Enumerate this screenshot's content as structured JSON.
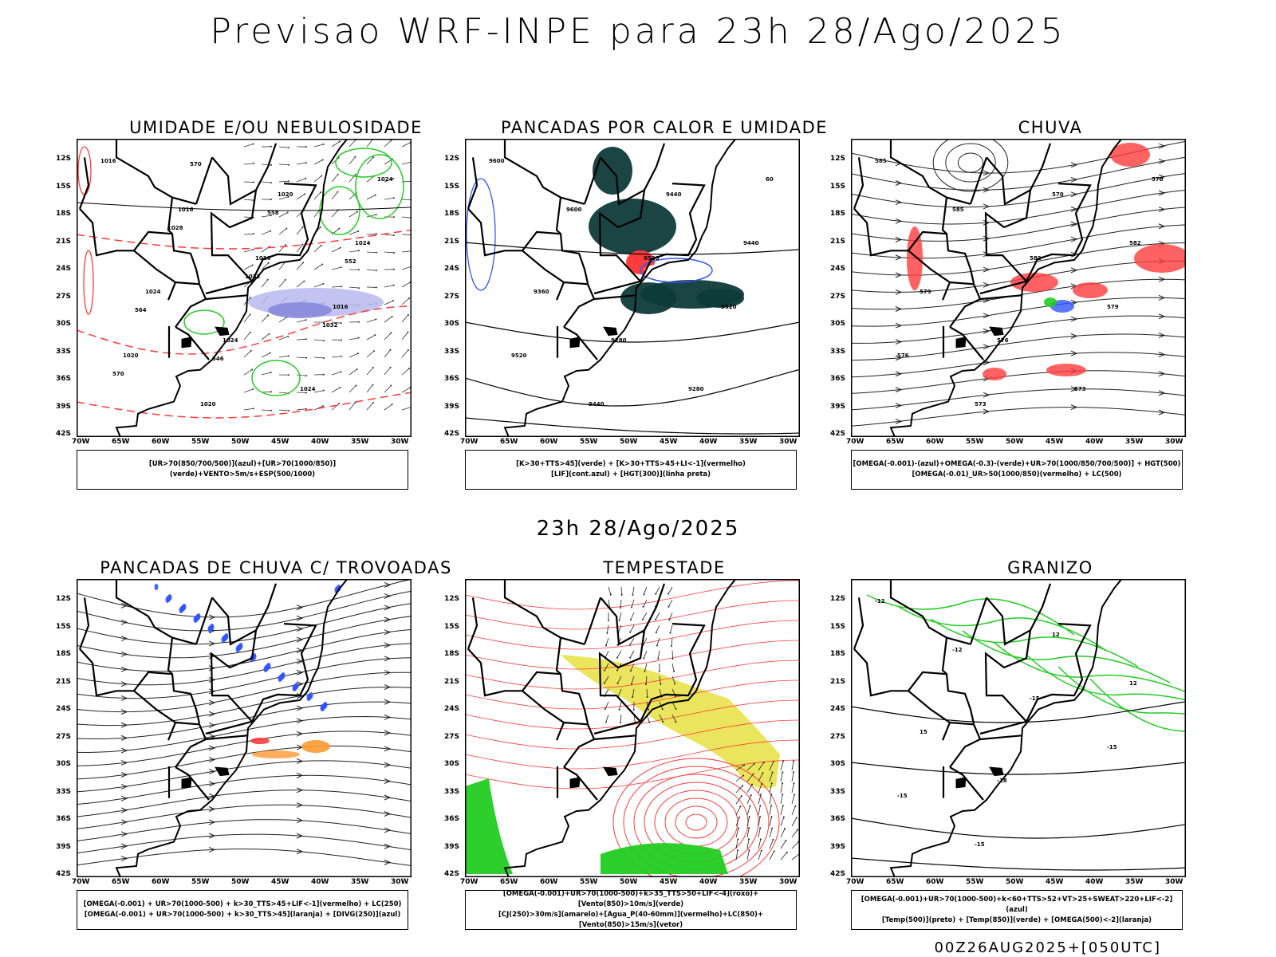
{
  "title": "Previsao WRF-INPE  para 23h 28/Ago/2025",
  "mid_title": "23h 28/Ago/2025",
  "footer": "00Z26AUG2025+[050UTC]",
  "axes": {
    "lat": [
      "12S",
      "15S",
      "18S",
      "21S",
      "24S",
      "27S",
      "30S",
      "33S",
      "36S",
      "39S",
      "42S"
    ],
    "lon": [
      "70W",
      "65W",
      "60W",
      "55W",
      "50W",
      "45W",
      "40W",
      "35W",
      "30W"
    ]
  },
  "colors": {
    "red": "#ff3b3b",
    "green": "#22cc22",
    "blue": "#3355ff",
    "lavender": "#b8b8f0",
    "darkteal": "#0f3a3a",
    "yellow": "#e6e040",
    "orange": "#ff9933",
    "black": "#000000"
  },
  "panels": [
    {
      "id": "umidade",
      "title": "UMIDADE E/OU NEBULOSIDADE",
      "caption_lines": [
        "[UR>70(850/700/500)](azul)+[UR>70(1000/850)](verde)+VENTO>5m/s+ESP(500/1000)"
      ],
      "labels": [
        "1016",
        "1016",
        "1016",
        "1016",
        "1020",
        "1020",
        "1020",
        "1024",
        "1024",
        "1024",
        "1024",
        "1024",
        "1028",
        "1032",
        "1032",
        "570",
        "570",
        "558",
        "552",
        "564",
        "546"
      ]
    },
    {
      "id": "pancadas-calor",
      "title": "PANCADAS POR CALOR E UMIDADE",
      "caption_lines": [
        "[K>30+TTS>45](verde) + [K>30+TTS>45+LI<-1](vermelho)",
        "[LIF](cont.azul) + [HGT(300)](linha preta)"
      ],
      "labels": [
        "9600",
        "9600",
        "9520",
        "9520",
        "9520",
        "9440",
        "9440",
        "9440",
        "9360",
        "9280",
        "9280",
        "60"
      ]
    },
    {
      "id": "chuva",
      "title": "CHUVA",
      "caption_lines": [
        "[OMEGA(-0.001)-(azul)+OMEGA(-0.3)-(verde)+UR>70(1000/850/700/500)] + HGT(500)",
        "[OMEGA(-0.01)_UR>50(1000/850)(vermelho) + LC(500)"
      ],
      "labels": [
        "585",
        "585",
        "582",
        "579",
        "576",
        "573",
        "570",
        "582",
        "579",
        "576",
        "573",
        "570"
      ]
    },
    {
      "id": "pancadas-trovoadas",
      "title": "PANCADAS DE CHUVA C/ TROVOADAS",
      "caption_lines": [
        "[OMEGA(-0.001) + UR>70(1000-500) + k>30_TTS>45+LIF<-1](vermelho) + LC(250)",
        "[OMEGA(-0.001) + UR>70(1000-500) + k>30_TTS>45](laranja) + [DIVG(250)](azul)"
      ],
      "labels": []
    },
    {
      "id": "tempestade",
      "title": "TEMPESTADE",
      "caption_lines": [
        "[OMEGA(-0.001)+UR>70(1000-500)+k>35_TTS>50+LIF<-4](roxo)+[Vento(850)>10m/s](verde)",
        "[CJ(250)>30m/s](amarelo)+[Agua_P(40-60mm)](vermelho)+LC(850)+[Vento(850)>15m/s](vetor)"
      ],
      "labels": []
    },
    {
      "id": "granizo",
      "title": "GRANIZO",
      "caption_lines": [
        "[OMEGA(-0.001)+UR>70(1000-500)+k<60+TTS>52+VT>25+SWEAT>220+LIF<-2](azul)",
        "[Temp(500)](preto) + [Temp(850)](verde) + [OMEGA(500)<-2](laranja)"
      ],
      "labels": [
        "-12",
        "-12",
        "-15",
        "-15",
        "-15",
        "-15",
        "12",
        "12",
        "15",
        "-18"
      ]
    }
  ]
}
